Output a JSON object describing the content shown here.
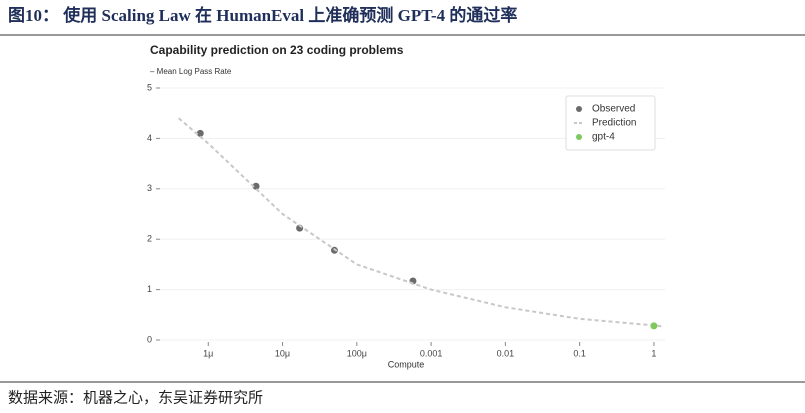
{
  "figure_title": "图10： 使用 Scaling Law 在 HumanEval 上准确预测 GPT-4 的通过率",
  "source": "数据来源：机器之心，东吴证券研究所",
  "chart_data": {
    "type": "line",
    "title": "Capability prediction on 23 coding problems",
    "y_label": "– Mean Log Pass Rate",
    "x_label": "Compute",
    "xscale": "log",
    "xlim": [
      2.24e-07,
      1.41
    ],
    "ylim": [
      0,
      5
    ],
    "xticks": [
      {
        "value": 1e-06,
        "label": "1μ"
      },
      {
        "value": 1e-05,
        "label": "10μ"
      },
      {
        "value": 0.0001,
        "label": "100μ"
      },
      0.001,
      0.01,
      0.1,
      1
    ],
    "yticks": [
      0,
      1,
      2,
      3,
      4,
      5
    ],
    "grid": true,
    "legend": "upper right",
    "series": [
      {
        "name": "Observed",
        "kind": "markers",
        "color": "#6b6b6b",
        "x": [
          7.8e-07,
          4.4e-06,
          1.7e-05,
          5e-05,
          0.00057
        ],
        "values": [
          4.1,
          3.05,
          2.22,
          1.78,
          1.17
        ]
      },
      {
        "name": "Prediction",
        "kind": "dashed",
        "color": "#c8c8c8",
        "x": [
          4e-07,
          1e-06,
          1e-05,
          0.0001,
          0.001,
          0.01,
          0.1,
          1,
          1.3
        ],
        "values": [
          4.4,
          3.9,
          2.5,
          1.5,
          1.0,
          0.65,
          0.42,
          0.29,
          0.27
        ]
      },
      {
        "name": "gpt-4",
        "kind": "markers",
        "color": "#7dc95e",
        "x": [
          1
        ],
        "values": [
          0.28
        ]
      }
    ]
  }
}
